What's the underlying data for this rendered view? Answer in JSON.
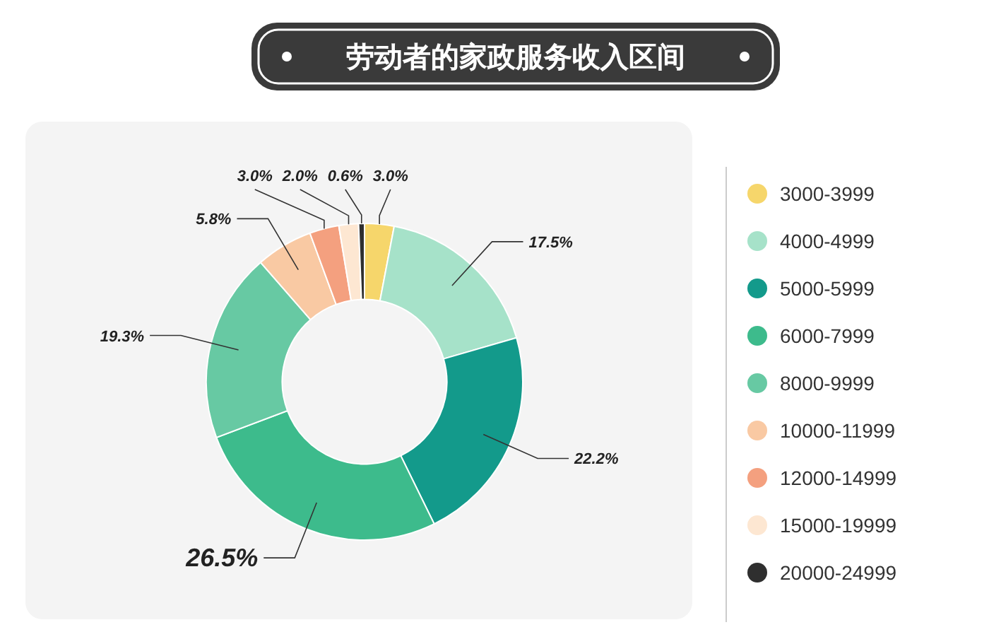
{
  "chart_data": {
    "type": "donut",
    "title": "劳动者的家政服务收入区间",
    "categories": [
      "3000-3999",
      "4000-4999",
      "5000-5999",
      "6000-7999",
      "8000-9999",
      "10000-11999",
      "12000-14999",
      "15000-19999",
      "20000-24999"
    ],
    "values": [
      3.0,
      17.5,
      22.2,
      26.5,
      19.3,
      5.8,
      3.0,
      2.0,
      0.6
    ],
    "colors": [
      "#f6d66b",
      "#a6e2c9",
      "#139a8b",
      "#3dbb8c",
      "#67c9a3",
      "#f9c9a3",
      "#f4a07f",
      "#fde7d2",
      "#2f2f2f"
    ],
    "value_labels": [
      "3.0%",
      "17.5%",
      "22.2%",
      "26.5%",
      "19.3%",
      "5.8%",
      "3.0%",
      "2.0%",
      "0.6%"
    ],
    "legend": "right"
  }
}
